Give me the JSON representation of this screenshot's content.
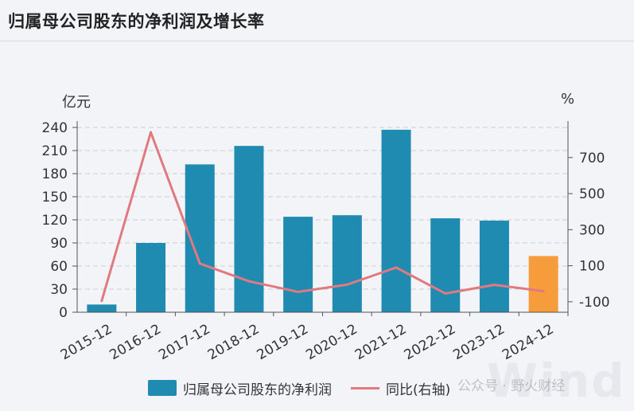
{
  "title": "归属母公司股东的净利润及增长率",
  "unit_left": "亿元",
  "unit_right": "%",
  "legend": {
    "bar_label": "归属母公司股东的净利润",
    "line_label": "同比(右轴)"
  },
  "watermark": {
    "text": "公众号 · 野火财经",
    "brand": "Wind"
  },
  "colors": {
    "bar": "#1f8bb0",
    "bar_highlight": "#f79c3a",
    "line": "#e07a80",
    "grid": "#c9ccd3"
  },
  "chart_data": {
    "type": "bar",
    "title": "归属母公司股东的净利润及增长率",
    "categories": [
      "2015-12",
      "2016-12",
      "2017-12",
      "2018-12",
      "2019-12",
      "2020-12",
      "2021-12",
      "2022-12",
      "2023-12",
      "2024-12"
    ],
    "series": [
      {
        "name": "归属母公司股东的净利润",
        "type": "bar",
        "axis": "left",
        "values": [
          10,
          90,
          192,
          216,
          124,
          126,
          237,
          122,
          119,
          73
        ]
      },
      {
        "name": "同比(右轴)",
        "type": "line",
        "axis": "right",
        "values": [
          -95,
          840,
          112,
          14,
          -45,
          -5,
          90,
          -54,
          -6,
          -41
        ]
      }
    ],
    "y_left": {
      "label": "亿元",
      "ticks": [
        0,
        30,
        60,
        90,
        120,
        150,
        180,
        210,
        240
      ],
      "ylim": [
        0,
        240
      ]
    },
    "y_right": {
      "label": "%",
      "ticks": [
        "-100",
        "100",
        "300",
        "500",
        "700"
      ],
      "ylim": [
        -158,
        867
      ]
    },
    "grid": true,
    "legend_position": "bottom"
  }
}
